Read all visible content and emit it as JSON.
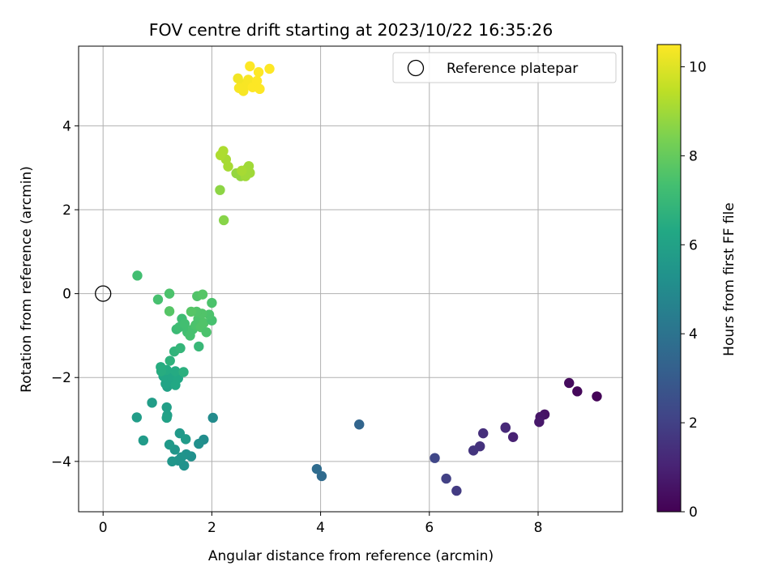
{
  "chart_data": {
    "type": "scatter",
    "title": "FOV centre drift starting at 2023/10/22 16:35:26",
    "xlabel": "Angular distance from reference (arcmin)",
    "ylabel": "Rotation from reference (arcmin)",
    "xlim": [
      -0.45,
      9.55
    ],
    "ylim": [
      -5.2,
      5.9
    ],
    "xticks": [
      0,
      2,
      4,
      6,
      8
    ],
    "yticks": [
      -4,
      -2,
      0,
      2,
      4
    ],
    "grid": true,
    "legend": {
      "position": "top-right",
      "entries": [
        "Reference platepar"
      ]
    },
    "reference_point": {
      "x": 0,
      "y": 0
    },
    "colorbar": {
      "label": "Hours from first FF file",
      "range": [
        0,
        10.5
      ],
      "ticks": [
        0,
        2,
        4,
        6,
        8,
        10
      ],
      "colormap": "viridis"
    },
    "series": [
      {
        "points": [
          {
            "x": 9.08,
            "y": -2.45,
            "c": 0.1
          },
          {
            "x": 8.72,
            "y": -2.33,
            "c": 0.2
          },
          {
            "x": 8.57,
            "y": -2.13,
            "c": 0.3
          },
          {
            "x": 8.12,
            "y": -2.88,
            "c": 0.5
          },
          {
            "x": 8.04,
            "y": -2.94,
            "c": 0.6
          },
          {
            "x": 8.02,
            "y": -3.06,
            "c": 0.7
          },
          {
            "x": 7.54,
            "y": -3.42,
            "c": 1.0
          },
          {
            "x": 7.4,
            "y": -3.19,
            "c": 1.1
          },
          {
            "x": 7.4,
            "y": -3.2,
            "c": 1.2
          },
          {
            "x": 6.99,
            "y": -3.33,
            "c": 1.4
          },
          {
            "x": 6.93,
            "y": -3.64,
            "c": 1.5
          },
          {
            "x": 6.81,
            "y": -3.74,
            "c": 1.6
          },
          {
            "x": 6.5,
            "y": -4.7,
            "c": 1.8
          },
          {
            "x": 6.31,
            "y": -4.41,
            "c": 2.0
          },
          {
            "x": 6.1,
            "y": -3.92,
            "c": 2.2
          },
          {
            "x": 4.71,
            "y": -3.12,
            "c": 3.4
          },
          {
            "x": 4.02,
            "y": -4.35,
            "c": 3.6
          },
          {
            "x": 3.93,
            "y": -4.18,
            "c": 3.7
          },
          {
            "x": 2.02,
            "y": -2.96,
            "c": 5.0
          },
          {
            "x": 1.85,
            "y": -3.48,
            "c": 5.1
          },
          {
            "x": 1.76,
            "y": -3.58,
            "c": 5.2
          },
          {
            "x": 1.62,
            "y": -3.88,
            "c": 5.2
          },
          {
            "x": 1.53,
            "y": -3.83,
            "c": 5.3
          },
          {
            "x": 1.49,
            "y": -4.1,
            "c": 5.3
          },
          {
            "x": 1.44,
            "y": -3.9,
            "c": 5.4
          },
          {
            "x": 1.38,
            "y": -3.98,
            "c": 5.4
          },
          {
            "x": 1.32,
            "y": -3.72,
            "c": 5.5
          },
          {
            "x": 1.27,
            "y": -4.0,
            "c": 5.5
          },
          {
            "x": 1.22,
            "y": -3.6,
            "c": 5.6
          },
          {
            "x": 1.41,
            "y": -3.33,
            "c": 5.6
          },
          {
            "x": 1.52,
            "y": -3.47,
            "c": 5.7
          },
          {
            "x": 0.74,
            "y": -3.5,
            "c": 5.7
          },
          {
            "x": 0.62,
            "y": -2.95,
            "c": 5.8
          },
          {
            "x": 0.9,
            "y": -2.6,
            "c": 5.8
          },
          {
            "x": 1.17,
            "y": -2.71,
            "c": 5.9
          },
          {
            "x": 1.18,
            "y": -2.9,
            "c": 5.9
          },
          {
            "x": 1.17,
            "y": -2.96,
            "c": 6.0
          },
          {
            "x": 1.18,
            "y": -2.22,
            "c": 6.0
          },
          {
            "x": 1.15,
            "y": -2.15,
            "c": 6.1
          },
          {
            "x": 1.22,
            "y": -2.05,
            "c": 6.1
          },
          {
            "x": 1.11,
            "y": -1.97,
            "c": 6.2
          },
          {
            "x": 1.27,
            "y": -1.98,
            "c": 6.2
          },
          {
            "x": 1.33,
            "y": -2.18,
            "c": 6.3
          },
          {
            "x": 1.38,
            "y": -2.02,
            "c": 6.3
          },
          {
            "x": 1.33,
            "y": -1.85,
            "c": 6.4
          },
          {
            "x": 1.17,
            "y": -1.82,
            "c": 6.4
          },
          {
            "x": 1.06,
            "y": -1.75,
            "c": 6.5
          },
          {
            "x": 1.07,
            "y": -1.85,
            "c": 6.5
          },
          {
            "x": 1.48,
            "y": -1.87,
            "c": 6.6
          },
          {
            "x": 1.23,
            "y": -1.6,
            "c": 6.7
          },
          {
            "x": 1.31,
            "y": -1.38,
            "c": 6.8
          },
          {
            "x": 1.42,
            "y": -1.3,
            "c": 6.9
          },
          {
            "x": 1.76,
            "y": -1.26,
            "c": 7.0
          },
          {
            "x": 1.35,
            "y": -0.85,
            "c": 7.1
          },
          {
            "x": 1.4,
            "y": -0.8,
            "c": 7.2
          },
          {
            "x": 1.45,
            "y": -0.6,
            "c": 7.2
          },
          {
            "x": 1.5,
            "y": -0.72,
            "c": 7.3
          },
          {
            "x": 1.55,
            "y": -0.92,
            "c": 7.3
          },
          {
            "x": 1.6,
            "y": -1.0,
            "c": 7.4
          },
          {
            "x": 1.65,
            "y": -0.85,
            "c": 7.4
          },
          {
            "x": 1.7,
            "y": -0.75,
            "c": 7.5
          },
          {
            "x": 1.75,
            "y": -0.6,
            "c": 7.5
          },
          {
            "x": 1.8,
            "y": -0.8,
            "c": 7.6
          },
          {
            "x": 1.85,
            "y": -0.7,
            "c": 7.6
          },
          {
            "x": 1.9,
            "y": -0.92,
            "c": 7.5
          },
          {
            "x": 2.0,
            "y": -0.64,
            "c": 7.4
          },
          {
            "x": 1.95,
            "y": -0.5,
            "c": 7.5
          },
          {
            "x": 1.82,
            "y": -0.48,
            "c": 7.6
          },
          {
            "x": 1.72,
            "y": -0.43,
            "c": 7.6
          },
          {
            "x": 1.62,
            "y": -0.43,
            "c": 7.7
          },
          {
            "x": 1.22,
            "y": -0.42,
            "c": 7.7
          },
          {
            "x": 1.01,
            "y": -0.14,
            "c": 7.4
          },
          {
            "x": 1.22,
            "y": 0.0,
            "c": 7.5
          },
          {
            "x": 1.73,
            "y": -0.06,
            "c": 7.6
          },
          {
            "x": 1.83,
            "y": -0.02,
            "c": 7.7
          },
          {
            "x": 2.0,
            "y": -0.22,
            "c": 7.5
          },
          {
            "x": 0.63,
            "y": 0.43,
            "c": 7.3
          },
          {
            "x": 2.22,
            "y": 1.75,
            "c": 8.6
          },
          {
            "x": 2.15,
            "y": 2.47,
            "c": 8.7
          },
          {
            "x": 2.53,
            "y": 2.8,
            "c": 8.8
          },
          {
            "x": 2.45,
            "y": 2.87,
            "c": 8.8
          },
          {
            "x": 2.6,
            "y": 2.92,
            "c": 8.9
          },
          {
            "x": 2.65,
            "y": 2.98,
            "c": 8.9
          },
          {
            "x": 2.68,
            "y": 3.04,
            "c": 9.0
          },
          {
            "x": 2.7,
            "y": 2.88,
            "c": 9.0
          },
          {
            "x": 2.62,
            "y": 2.8,
            "c": 9.0
          },
          {
            "x": 2.55,
            "y": 2.93,
            "c": 9.1
          },
          {
            "x": 2.3,
            "y": 3.03,
            "c": 9.1
          },
          {
            "x": 2.26,
            "y": 3.2,
            "c": 9.1
          },
          {
            "x": 2.21,
            "y": 3.4,
            "c": 9.2
          },
          {
            "x": 2.16,
            "y": 3.3,
            "c": 9.2
          },
          {
            "x": 2.48,
            "y": 5.13,
            "c": 10.3
          },
          {
            "x": 2.55,
            "y": 5.0,
            "c": 10.3
          },
          {
            "x": 2.58,
            "y": 4.83,
            "c": 10.4
          },
          {
            "x": 2.62,
            "y": 4.95,
            "c": 10.4
          },
          {
            "x": 2.67,
            "y": 5.1,
            "c": 10.4
          },
          {
            "x": 2.7,
            "y": 5.42,
            "c": 10.5
          },
          {
            "x": 2.75,
            "y": 4.92,
            "c": 10.5
          },
          {
            "x": 2.83,
            "y": 5.07,
            "c": 10.5
          },
          {
            "x": 2.86,
            "y": 5.28,
            "c": 10.5
          },
          {
            "x": 2.88,
            "y": 4.88,
            "c": 10.5
          },
          {
            "x": 3.06,
            "y": 5.36,
            "c": 10.5
          },
          {
            "x": 2.5,
            "y": 4.9,
            "c": 10.4
          }
        ]
      }
    ]
  }
}
